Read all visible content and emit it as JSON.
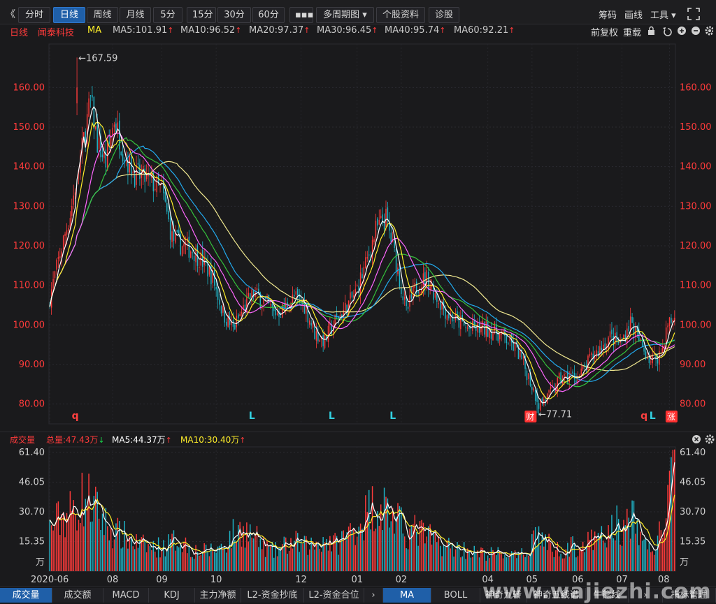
{
  "toolbar": {
    "collapse_icon": "《",
    "buttons": [
      "分时",
      "日线",
      "周线",
      "月线",
      "5分",
      "15分",
      "30分",
      "60分",
      "▪▪▪",
      "多周期图 ▾",
      "个股资料",
      "诊股"
    ],
    "active": "日线",
    "tools": [
      "筹码",
      "画线",
      "工具 ▾"
    ],
    "fullscreen_icon": "fullscreen-icon"
  },
  "ma_header": {
    "period": "日线",
    "stock_name": "闻泰科技",
    "indicator": "MA",
    "items": [
      {
        "label": "MA5:101.91",
        "arrow": "↑",
        "color": "#ffffff"
      },
      {
        "label": "MA10:96.52",
        "arrow": "↑",
        "color": "#ffee2a"
      },
      {
        "label": "MA20:97.37",
        "arrow": "↑",
        "color": "#ff66ff"
      },
      {
        "label": "MA30:96.45",
        "arrow": "↑",
        "color": "#35c23c"
      },
      {
        "label": "MA40:95.74",
        "arrow": "↑",
        "color": "#22aaee"
      },
      {
        "label": "MA60:92.21",
        "arrow": "↑",
        "color": "#f0e890"
      }
    ],
    "right_tools": [
      "前复权",
      "重载"
    ],
    "right_icons": [
      "lock-icon",
      "undo-icon",
      "zoom-in-icon",
      "zoom-out-icon",
      "settings-icon"
    ]
  },
  "volume_header": {
    "label": "成交量",
    "total": "总量:47.43万",
    "total_arrow": "↓",
    "ma5": "MA5:44.37万",
    "ma5_arrow": "↑",
    "ma10": "MA10:30.40万",
    "ma10_arrow": "↑"
  },
  "price_axis": {
    "ticks": [
      "160.00",
      "150.00",
      "140.00",
      "130.00",
      "120.00",
      "110.00",
      "100.00",
      "90.00",
      "80.00"
    ],
    "values": [
      160,
      150,
      140,
      130,
      120,
      110,
      100,
      90,
      80
    ],
    "min": 75,
    "max": 171
  },
  "volume_axis": {
    "ticks": [
      "61.40",
      "46.05",
      "30.70",
      "15.35"
    ],
    "values": [
      61.4,
      46.05,
      30.7,
      15.35
    ],
    "unit": "万",
    "max": 61.4
  },
  "x_axis": {
    "labels": [
      "2020-06",
      "08",
      "09",
      "10",
      "12",
      "01",
      "02",
      "04",
      "05",
      "06",
      "07",
      "08"
    ],
    "positions_index": [
      0,
      37,
      66,
      98,
      148,
      181,
      207,
      258,
      284,
      311,
      337,
      365
    ]
  },
  "annotations": {
    "high": "←167.59",
    "high_value": 167.59,
    "low": "←77.71",
    "low_value": 77.71
  },
  "markers": [
    {
      "text": "q",
      "color": "#ff4040",
      "idx": 15,
      "type": "text"
    },
    {
      "text": "L",
      "color": "#33d0e0",
      "idx": 119,
      "type": "text"
    },
    {
      "text": "L",
      "color": "#33d0e0",
      "idx": 166,
      "type": "text"
    },
    {
      "text": "L",
      "color": "#33d0e0",
      "idx": 202,
      "type": "text"
    },
    {
      "text": "财",
      "color": "#ff3030",
      "idx": 283,
      "type": "badge"
    },
    {
      "text": "q",
      "color": "#ff4040",
      "idx": 350,
      "type": "text"
    },
    {
      "text": "L",
      "color": "#33d0e0",
      "idx": 355,
      "type": "text"
    },
    {
      "text": "涨",
      "color": "#ff3030",
      "idx": 366,
      "type": "badge"
    }
  ],
  "bottom_tabs": [
    "成交量",
    "成交额",
    "MACD",
    "KDJ",
    "主力净额",
    "L2-资金抄底",
    "L2-资金合位",
    "›",
    "MA",
    "BOLL",
    "神奇九转",
    "神奇五线谱",
    "牛熊线",
    "›",
    "指标管理"
  ],
  "bottom_tabs_active": [
    "成交量",
    "MA"
  ],
  "watermark": "www.wajiezhi.com",
  "colors": {
    "up": "#ff3b3b",
    "down": "#1fb5c8",
    "ma5": "#ffffff",
    "ma10": "#ffee2a",
    "ma20": "#ff66ff",
    "ma30": "#35c23c",
    "ma40": "#22aaee",
    "ma60": "#f0e890",
    "axis_label": "#ff3b3b"
  },
  "chart_data": {
    "type": "candlestick",
    "title": "闻泰科技 日线",
    "anchors": [
      [
        0,
        107
      ],
      [
        6,
        118
      ],
      [
        12,
        128
      ],
      [
        18,
        142
      ],
      [
        24,
        157
      ],
      [
        28,
        146
      ],
      [
        33,
        141
      ],
      [
        38,
        152
      ],
      [
        44,
        143
      ],
      [
        50,
        138
      ],
      [
        56,
        137
      ],
      [
        60,
        136
      ],
      [
        66,
        134
      ],
      [
        72,
        122
      ],
      [
        78,
        120
      ],
      [
        84,
        119
      ],
      [
        90,
        116
      ],
      [
        96,
        112
      ],
      [
        102,
        103
      ],
      [
        108,
        99
      ],
      [
        114,
        104
      ],
      [
        120,
        108
      ],
      [
        126,
        106
      ],
      [
        132,
        103
      ],
      [
        138,
        104
      ],
      [
        144,
        107
      ],
      [
        150,
        105
      ],
      [
        156,
        98
      ],
      [
        162,
        96
      ],
      [
        168,
        101
      ],
      [
        174,
        104
      ],
      [
        180,
        108
      ],
      [
        186,
        115
      ],
      [
        192,
        124
      ],
      [
        198,
        127
      ],
      [
        204,
        116
      ],
      [
        210,
        103
      ],
      [
        216,
        110
      ],
      [
        222,
        112
      ],
      [
        228,
        107
      ],
      [
        234,
        103
      ],
      [
        240,
        101
      ],
      [
        246,
        99
      ],
      [
        252,
        99
      ],
      [
        258,
        99
      ],
      [
        264,
        98
      ],
      [
        270,
        96
      ],
      [
        276,
        93
      ],
      [
        282,
        87
      ],
      [
        288,
        80
      ],
      [
        294,
        82
      ],
      [
        300,
        86
      ],
      [
        306,
        87
      ],
      [
        312,
        87
      ],
      [
        318,
        91
      ],
      [
        324,
        94
      ],
      [
        330,
        97
      ],
      [
        336,
        95
      ],
      [
        342,
        101
      ],
      [
        348,
        95
      ],
      [
        354,
        91
      ],
      [
        360,
        93
      ],
      [
        364,
        100
      ],
      [
        368,
        102
      ]
    ],
    "volume_anchors": [
      [
        0,
        22
      ],
      [
        8,
        29
      ],
      [
        14,
        31
      ],
      [
        18,
        37
      ],
      [
        22,
        38
      ],
      [
        26,
        33
      ],
      [
        30,
        28
      ],
      [
        36,
        21
      ],
      [
        44,
        18
      ],
      [
        52,
        14
      ],
      [
        60,
        12
      ],
      [
        68,
        13
      ],
      [
        76,
        17
      ],
      [
        84,
        11
      ],
      [
        90,
        10
      ],
      [
        96,
        11
      ],
      [
        102,
        13
      ],
      [
        108,
        19
      ],
      [
        114,
        22
      ],
      [
        120,
        18
      ],
      [
        126,
        13
      ],
      [
        132,
        10
      ],
      [
        138,
        13
      ],
      [
        144,
        15
      ],
      [
        150,
        13
      ],
      [
        156,
        14
      ],
      [
        162,
        17
      ],
      [
        168,
        14
      ],
      [
        174,
        18
      ],
      [
        180,
        23
      ],
      [
        186,
        29
      ],
      [
        192,
        36
      ],
      [
        198,
        33
      ],
      [
        204,
        26
      ],
      [
        210,
        20
      ],
      [
        216,
        21
      ],
      [
        222,
        18
      ],
      [
        228,
        15
      ],
      [
        234,
        13
      ],
      [
        240,
        12
      ],
      [
        246,
        11
      ],
      [
        252,
        9
      ],
      [
        258,
        9
      ],
      [
        264,
        9
      ],
      [
        270,
        9
      ],
      [
        276,
        7
      ],
      [
        282,
        11
      ],
      [
        286,
        21
      ],
      [
        292,
        15
      ],
      [
        298,
        11
      ],
      [
        304,
        12
      ],
      [
        310,
        13
      ],
      [
        316,
        14
      ],
      [
        322,
        16
      ],
      [
        328,
        18
      ],
      [
        334,
        25
      ],
      [
        338,
        20
      ],
      [
        342,
        29
      ],
      [
        348,
        18
      ],
      [
        354,
        11
      ],
      [
        358,
        15
      ],
      [
        362,
        28
      ],
      [
        366,
        47
      ],
      [
        368,
        45
      ]
    ],
    "series": [
      {
        "name": "MA5",
        "value": 101.91
      },
      {
        "name": "MA10",
        "value": 96.52
      },
      {
        "name": "MA20",
        "value": 97.37
      },
      {
        "name": "MA30",
        "value": 96.45
      },
      {
        "name": "MA40",
        "value": 95.74
      },
      {
        "name": "MA60",
        "value": 92.21
      }
    ],
    "volume": {
      "total": "47.43万",
      "ma5": "44.37万",
      "ma10": "30.40万"
    },
    "ylim": [
      75,
      171
    ],
    "volume_ylim": [
      0,
      61.4
    ],
    "high": 167.59,
    "low": 77.71,
    "n_bars": 369
  }
}
